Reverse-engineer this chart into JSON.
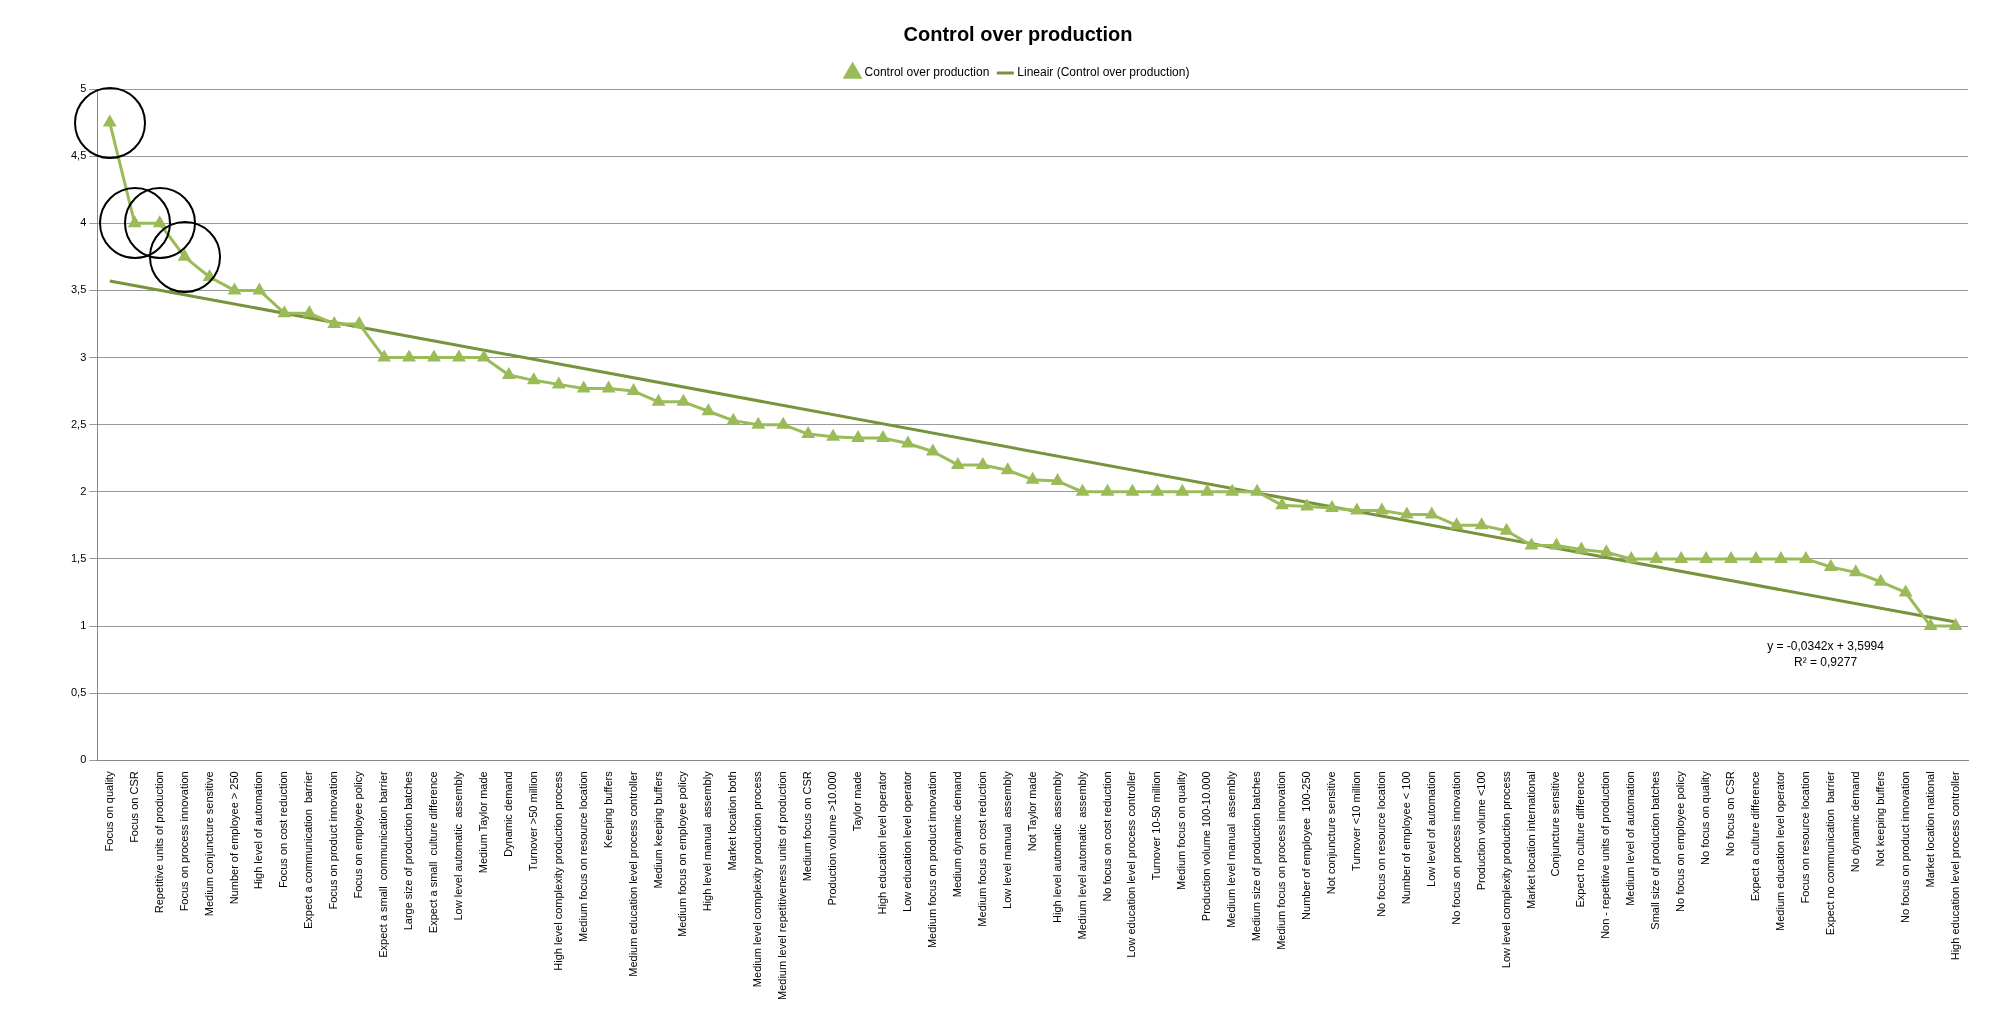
{
  "chart_data": {
    "type": "line",
    "title": "Control over production",
    "legend": "top",
    "grid": "y",
    "marker": "triangle",
    "line_style": "solid",
    "categories": [
      "Focus on quality",
      "Focus on CSR",
      "Repetitive units of production",
      "Focus on process innovation",
      "Medium conjuncture sensitive",
      "Number of employee > 250",
      "High level of automation",
      "Focus on cost reduction",
      "Expect a communication  barrier",
      "Focus on product innovation",
      "Focus on employee policy",
      "Expect a small  communication barrier",
      "Large size of production batches",
      "Expect a small  culture difference",
      "Low level automatic  assembly",
      "Medium Taylor made",
      "Dynamic demand",
      "Turnover >50 million",
      "High level complexity production process",
      "Medium focus on resource location",
      "Keeping buffers",
      "Medium education level process controller",
      "Medium keeping buffers",
      "Medium focus on employee policy",
      "High level manual  assembly",
      "Market location both",
      "Medium level complexity production process",
      "Medium level repetitiveness units of production",
      "Medium focus on CSR",
      "Production volume >10.000",
      "Taylor made",
      "High education level operator",
      "Low education level operator",
      "Medium focus on product innovation",
      "Medium dynamic demand",
      "Medium focus on cost reduction",
      "Low level manual  assembly",
      "Not Taylor made",
      "High level automatic  assembly",
      "Medium level automatic  assembly",
      "No focus on cost reduction",
      "Low education level process controller",
      "Turnover 10-50 million",
      "Medium focus on quality",
      "Production volume 100-10.000",
      "Medium level manual  assembly",
      "Medium size of production batches",
      "Medium focus on process innovation",
      "Number of employee  100-250",
      "Not conjuncture sensitive",
      "Turnover <10 million",
      "No focus on resource location",
      "Number of employee < 100",
      "Low level of automation",
      "No focus on process innovation",
      "Production volume <100",
      "Low level complexity production process",
      "Market location international",
      "Conjuncture sensitive",
      "Expect no culture difference",
      "Non - repetitive units of production",
      "Medium level of automation",
      "Small size of production batches",
      "No focus on employee policy",
      "No focus on quality",
      "No focus on CSR",
      "Expect a culture difference",
      "Medium education level operator",
      "Focus on resource location",
      "Expect no communication  barrier",
      "No dynamic demand",
      "Not keeping buffers",
      "No focus on product innovation",
      "Market location national",
      "High education level process controller"
    ],
    "series": [
      {
        "name": "Control over production",
        "color": "#9bbb59",
        "values": [
          4.75,
          4.0,
          4.0,
          3.75,
          3.6,
          3.5,
          3.5,
          3.33,
          3.33,
          3.25,
          3.25,
          3.0,
          3.0,
          3.0,
          3.0,
          3.0,
          2.87,
          2.83,
          2.8,
          2.77,
          2.77,
          2.75,
          2.67,
          2.67,
          2.6,
          2.53,
          2.5,
          2.5,
          2.43,
          2.41,
          2.4,
          2.4,
          2.36,
          2.3,
          2.2,
          2.2,
          2.16,
          2.09,
          2.08,
          2.0,
          2.0,
          2.0,
          2.0,
          2.0,
          2.0,
          2.0,
          2.0,
          1.9,
          1.89,
          1.88,
          1.86,
          1.86,
          1.83,
          1.83,
          1.75,
          1.75,
          1.71,
          1.6,
          1.6,
          1.57,
          1.55,
          1.5,
          1.5,
          1.5,
          1.5,
          1.5,
          1.5,
          1.5,
          1.5,
          1.44,
          1.4,
          1.33,
          1.25,
          1.0,
          1.0
        ]
      },
      {
        "name": "Lineair (Control over production)",
        "type": "line",
        "color": "#77933c",
        "marker": "none",
        "x": [
          "Focus on quality",
          "High education level process controller"
        ],
        "values": [
          3.57,
          1.03
        ]
      }
    ],
    "ylim": [
      0,
      5
    ],
    "yticks": [
      {
        "value": 0,
        "label": "0"
      },
      {
        "value": 0.5,
        "label": "0,5"
      },
      {
        "value": 1,
        "label": "1"
      },
      {
        "value": 1.5,
        "label": "1,5"
      },
      {
        "value": 2,
        "label": "2"
      },
      {
        "value": 2.5,
        "label": "2,5"
      },
      {
        "value": 3,
        "label": "3"
      },
      {
        "value": 3.5,
        "label": "3,5"
      },
      {
        "value": 4,
        "label": "4"
      },
      {
        "value": 4.5,
        "label": "4,5"
      },
      {
        "value": 5,
        "label": "5"
      }
    ],
    "annotations": [
      "y = -0,0342x + 3,5994",
      "R² = 0,9277"
    ]
  }
}
